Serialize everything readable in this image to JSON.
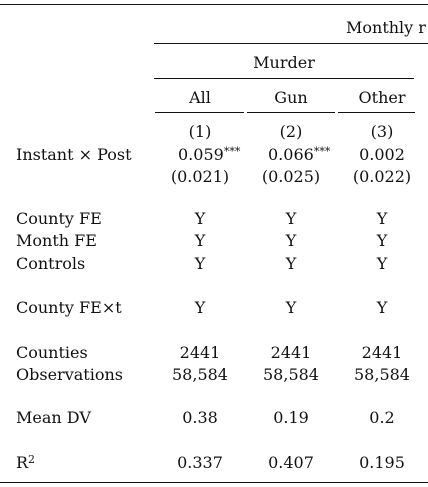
{
  "header": {
    "top_label": "Monthly r",
    "group_label": "Murder",
    "columns": [
      "All",
      "Gun",
      "Other"
    ],
    "numbers": [
      "(1)",
      "(2)",
      "(3)"
    ]
  },
  "rows": {
    "treatment": {
      "label": "Instant × Post",
      "coef": [
        "0.059",
        "0.066",
        "0.002"
      ],
      "stars": [
        "***",
        "***",
        ""
      ],
      "se": [
        "(0.021)",
        "(0.025)",
        "(0.022)"
      ]
    },
    "county_fe": {
      "label": "County FE",
      "values": [
        "Y",
        "Y",
        "Y"
      ]
    },
    "month_fe": {
      "label": "Month FE",
      "values": [
        "Y",
        "Y",
        "Y"
      ]
    },
    "controls": {
      "label": "Controls",
      "values": [
        "Y",
        "Y",
        "Y"
      ]
    },
    "county_fe_t": {
      "label": "County FE×t",
      "values": [
        "Y",
        "Y",
        "Y"
      ]
    },
    "counties": {
      "label": "Counties",
      "values": [
        "2441",
        "2441",
        "2441"
      ]
    },
    "observations": {
      "label": "Observations",
      "values": [
        "58,584",
        "58,584",
        "58,584"
      ]
    },
    "mean_dv": {
      "label": "Mean DV",
      "values": [
        "0.38",
        "0.19",
        "0.2"
      ]
    },
    "r2": {
      "label": "R",
      "label_sup": "2",
      "values": [
        "0.337",
        "0.407",
        "0.195"
      ]
    }
  }
}
